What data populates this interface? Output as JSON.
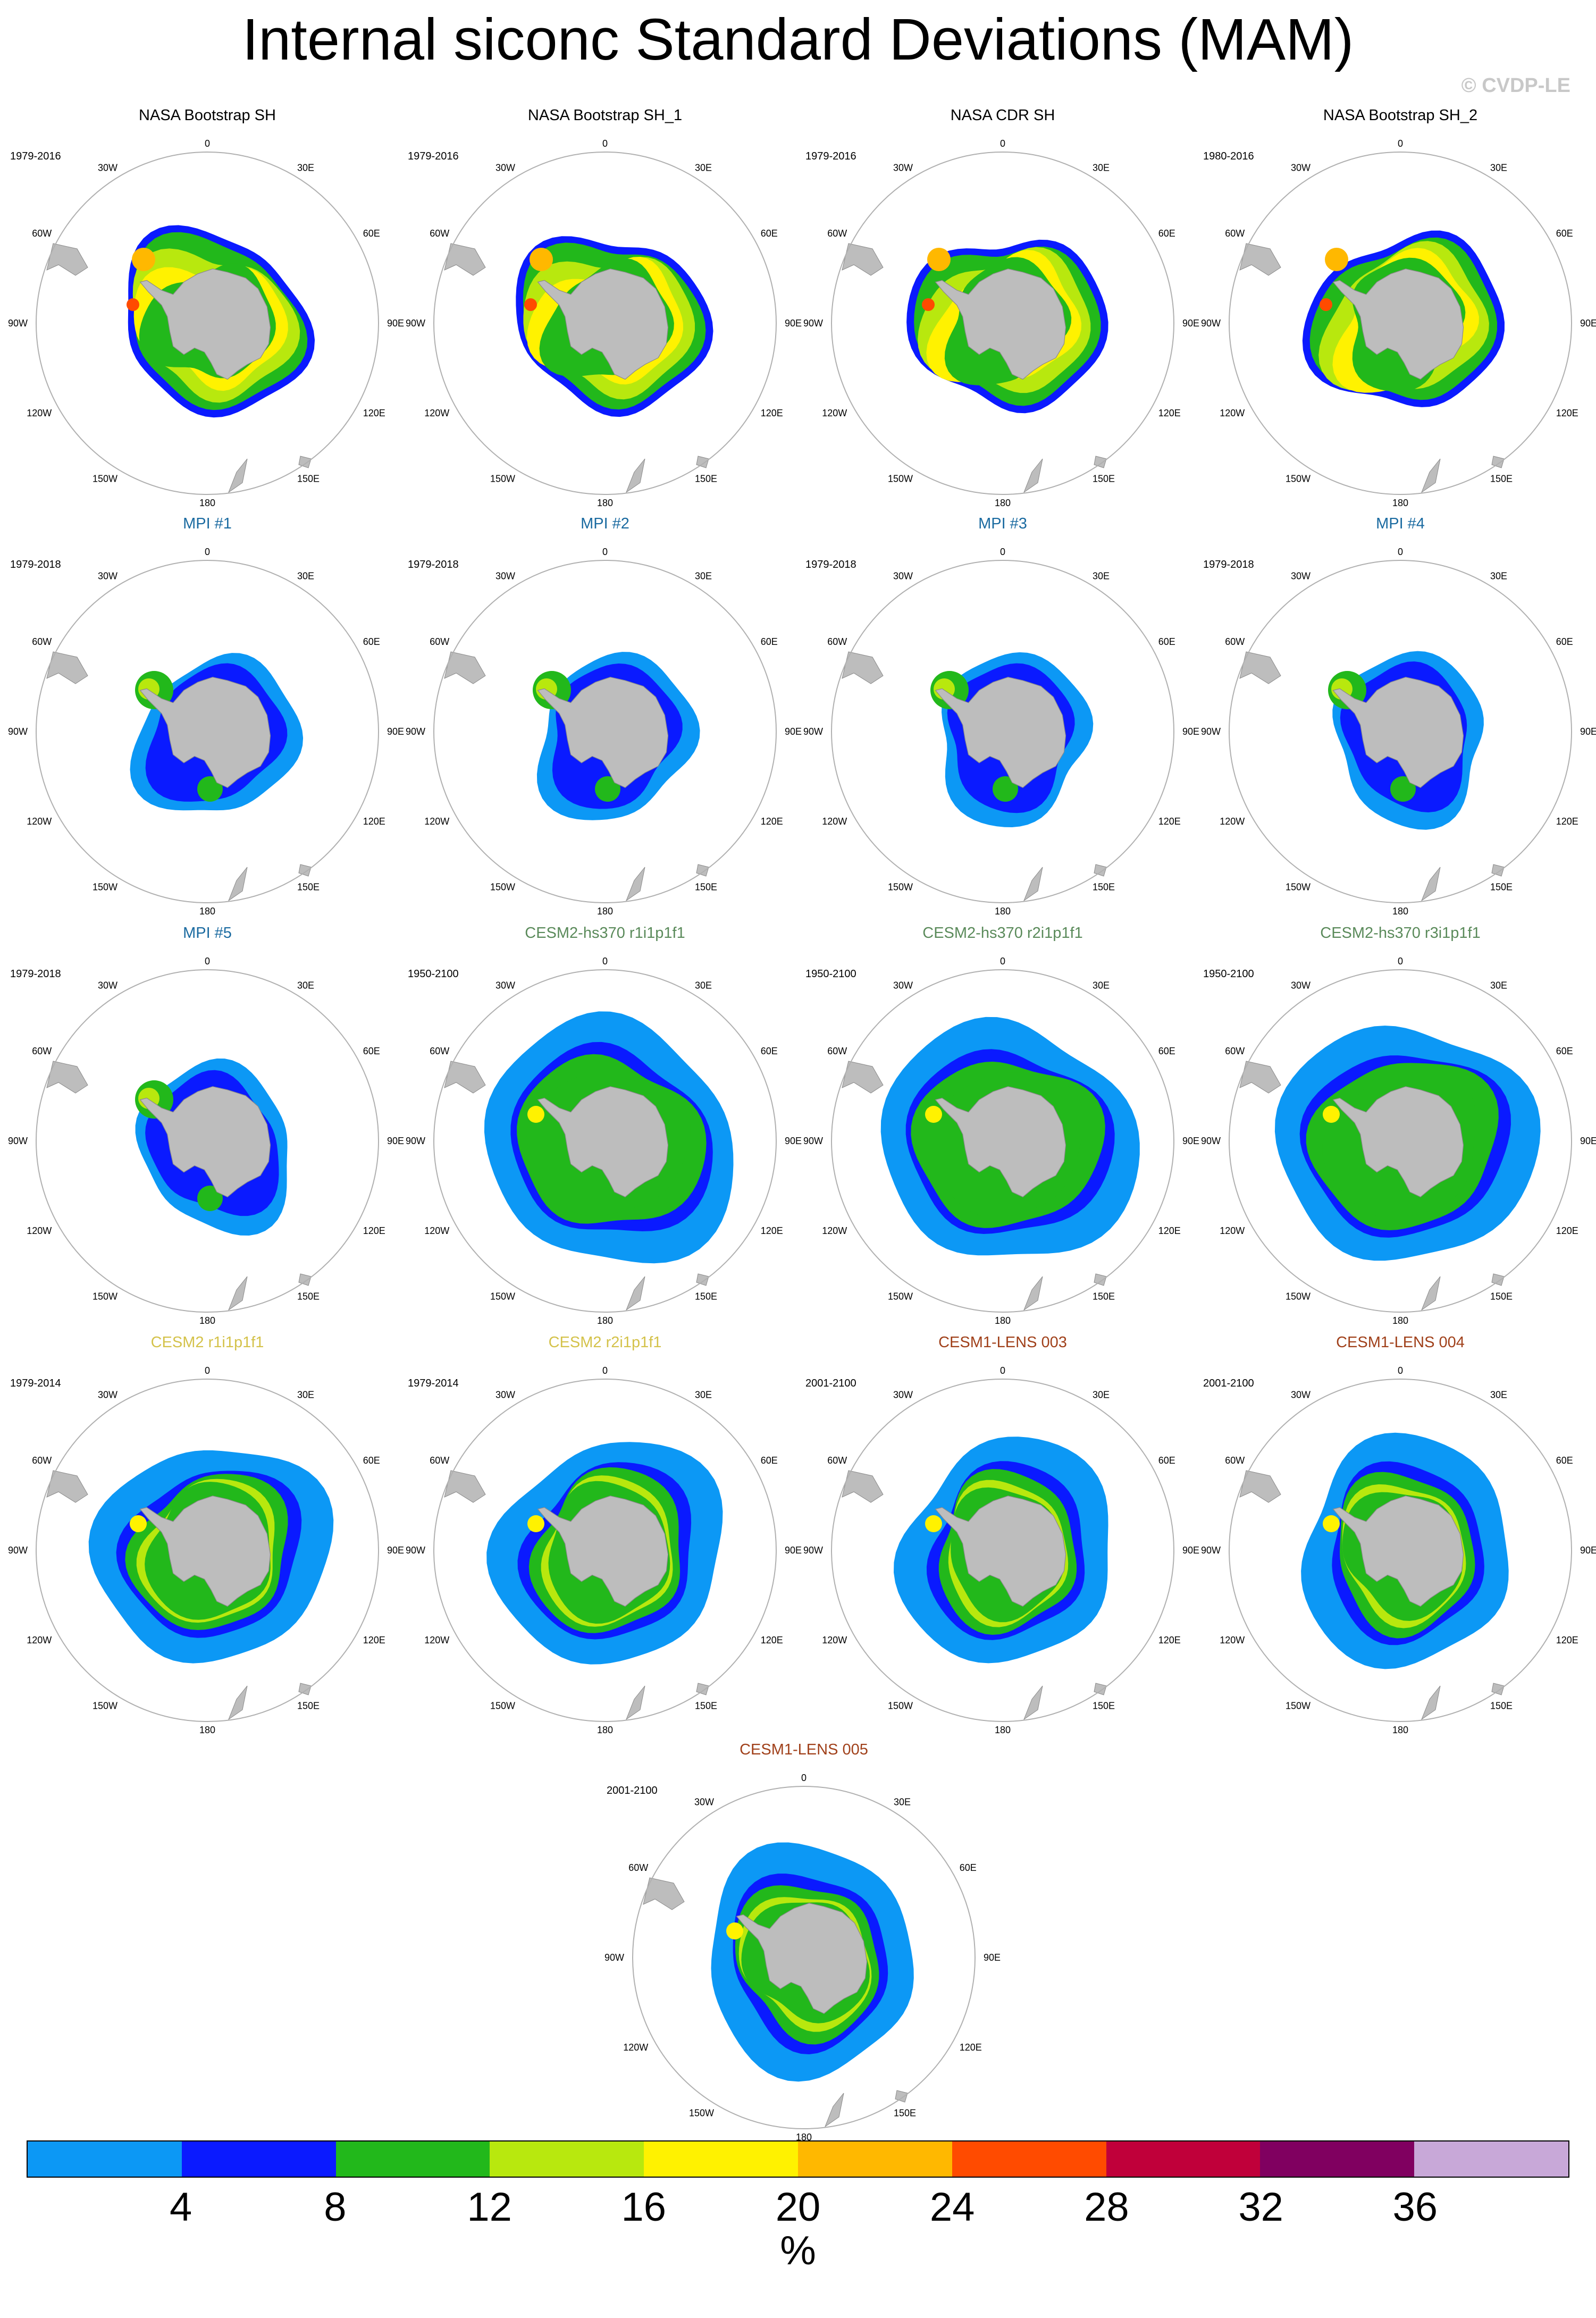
{
  "title": "Internal siconc Standard Deviations (MAM)",
  "watermark": "© CVDP-LE",
  "longitude_labels": [
    "0",
    "30E",
    "60E",
    "90E",
    "120E",
    "150E",
    "180",
    "150W",
    "120W",
    "90W",
    "60W",
    "30W"
  ],
  "colors": {
    "land": "#bdbdbd",
    "ice_free": "#ffffff",
    "ring": "#b0b0b0"
  },
  "panels": [
    {
      "title": "NASA Bootstrap SH",
      "period": "1979-2016",
      "title_color": "#000000",
      "group": "obs",
      "pattern": [
        2,
        4,
        5,
        4,
        3,
        2,
        4,
        5,
        4,
        3,
        2,
        3,
        4,
        3
      ]
    },
    {
      "title": "NASA Bootstrap SH_1",
      "period": "1979-2016",
      "title_color": "#000000",
      "group": "obs",
      "pattern": [
        2,
        4,
        5,
        4,
        3,
        2,
        4,
        5,
        4,
        3,
        2,
        3,
        4,
        3
      ]
    },
    {
      "title": "NASA CDR SH",
      "period": "1979-2016",
      "title_color": "#000000",
      "group": "obs",
      "pattern": [
        2,
        4,
        5,
        4,
        3,
        2,
        4,
        5,
        4,
        3,
        2,
        3,
        4,
        3
      ]
    },
    {
      "title": "NASA Bootstrap SH_2",
      "period": "1980-2016",
      "title_color": "#000000",
      "group": "obs",
      "pattern": [
        2,
        4,
        5,
        4,
        3,
        2,
        4,
        5,
        4,
        3,
        2,
        3,
        4,
        3
      ]
    },
    {
      "title": "MPI #1",
      "period": "1979-2018",
      "title_color": "#1a6aa0",
      "group": "mpi"
    },
    {
      "title": "MPI #2",
      "period": "1979-2018",
      "title_color": "#1a6aa0",
      "group": "mpi"
    },
    {
      "title": "MPI #3",
      "period": "1979-2018",
      "title_color": "#1a6aa0",
      "group": "mpi"
    },
    {
      "title": "MPI #4",
      "period": "1979-2018",
      "title_color": "#1a6aa0",
      "group": "mpi"
    },
    {
      "title": "MPI #5",
      "period": "1979-2018",
      "title_color": "#1a6aa0",
      "group": "mpi"
    },
    {
      "title": "CESM2-hs370 r1i1p1f1",
      "period": "1950-2100",
      "title_color": "#5a8a5a",
      "group": "hs370"
    },
    {
      "title": "CESM2-hs370 r2i1p1f1",
      "period": "1950-2100",
      "title_color": "#5a8a5a",
      "group": "hs370"
    },
    {
      "title": "CESM2-hs370 r3i1p1f1",
      "period": "1950-2100",
      "title_color": "#5a8a5a",
      "group": "hs370"
    },
    {
      "title": "CESM2 r1i1p1f1",
      "period": "1979-2014",
      "title_color": "#d4c24a",
      "group": "cesm2"
    },
    {
      "title": "CESM2 r2i1p1f1",
      "period": "1979-2014",
      "title_color": "#d4c24a",
      "group": "cesm2"
    },
    {
      "title": "CESM1-LENS 003",
      "period": "2001-2100",
      "title_color": "#a0401a",
      "group": "lens"
    },
    {
      "title": "CESM1-LENS 004",
      "period": "2001-2100",
      "title_color": "#a0401a",
      "group": "lens"
    },
    {
      "title": "CESM1-LENS 005",
      "period": "2001-2100",
      "title_color": "#a0401a",
      "group": "lens"
    }
  ],
  "colorbar": {
    "unit": "%",
    "ticks": [
      "4",
      "8",
      "12",
      "16",
      "20",
      "24",
      "28",
      "32",
      "36"
    ],
    "colors": [
      "#0c98f5",
      "#0a1aff",
      "#22b81b",
      "#b8e80e",
      "#fff200",
      "#ffb800",
      "#ff4b00",
      "#c0003a",
      "#800060",
      "#c8a8d8"
    ]
  }
}
